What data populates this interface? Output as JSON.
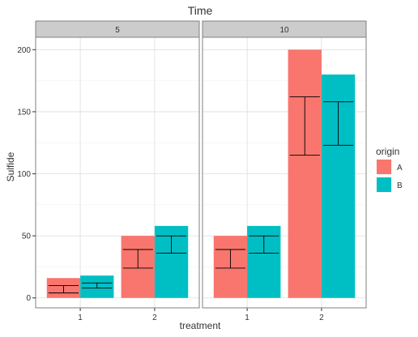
{
  "chart_data": {
    "type": "bar",
    "title": "Time",
    "xlabel": "treatment",
    "ylabel": "Sulfide",
    "ylim": [
      -8,
      210
    ],
    "y_ticks": [
      0,
      50,
      100,
      150,
      200
    ],
    "categories": [
      "1",
      "2"
    ],
    "legend": {
      "title": "origin",
      "placement": "right",
      "entries": [
        "A",
        "B"
      ]
    },
    "colors": {
      "A": "#F8766D",
      "B": "#00BFC4"
    },
    "grid": true,
    "facets": [
      {
        "label": "5",
        "series": [
          {
            "name": "A",
            "values": [
              16,
              50
            ],
            "err_low": [
              4,
              24
            ],
            "err_high": [
              10,
              39
            ]
          },
          {
            "name": "B",
            "values": [
              18,
              58
            ],
            "err_low": [
              8,
              36
            ],
            "err_high": [
              12,
              50
            ]
          }
        ]
      },
      {
        "label": "10",
        "series": [
          {
            "name": "A",
            "values": [
              50,
              200
            ],
            "err_low": [
              24,
              115
            ],
            "err_high": [
              39,
              162
            ]
          },
          {
            "name": "B",
            "values": [
              58,
              180
            ],
            "err_low": [
              36,
              123
            ],
            "err_high": [
              50,
              158
            ]
          }
        ]
      }
    ]
  }
}
